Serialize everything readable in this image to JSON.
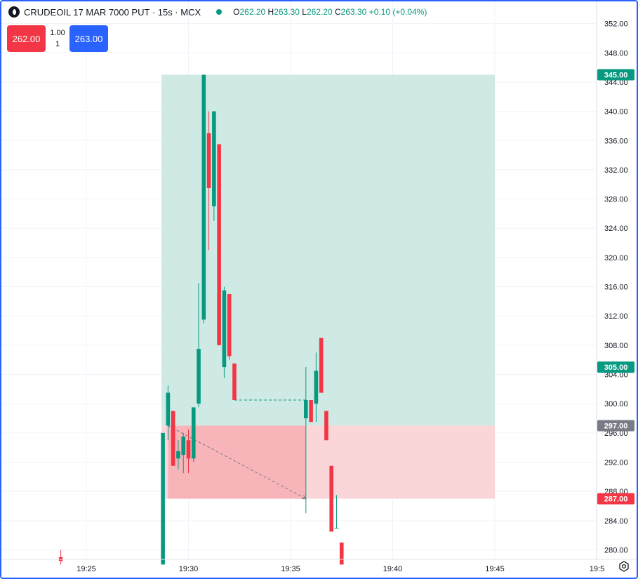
{
  "header": {
    "symbol": "CRUDEOIL 17 MAR 7000 PUT · 15s · MCX",
    "o_label": "O",
    "o_value": "262.20",
    "h_label": "H",
    "h_value": "263.30",
    "l_label": "L",
    "l_value": "262.20",
    "c_label": "C",
    "c_value": "263.30",
    "change": "+0.10 (+0.04%)"
  },
  "trade": {
    "sell_price": "262.00",
    "buy_price": "263.00",
    "qty_top": "1.00",
    "qty_bottom": "1"
  },
  "colors": {
    "up": "#089981",
    "down": "#f23645",
    "accent": "#2962ff",
    "profit_zone": "#cfeae4",
    "loss_zone": "#fbd6d9",
    "loss_zone_overlap": "#f7b5ba",
    "entry_label": "#787b86"
  },
  "chart_data": {
    "type": "candlestick",
    "y_axis": {
      "range": [
        278,
        353
      ],
      "ticks": [
        280,
        284,
        288,
        292,
        296,
        300,
        304,
        308,
        312,
        316,
        320,
        324,
        328,
        332,
        336,
        340,
        344,
        348,
        352
      ],
      "grid": true
    },
    "x_axis": {
      "range": [
        "19:22:15",
        "19:51:30"
      ],
      "ticks": [
        "19:25",
        "19:30",
        "19:35",
        "19:40",
        "19:45",
        "19:5"
      ],
      "grid": true
    },
    "candles": [
      {
        "t": "19:23:45",
        "o": 279.0,
        "h": 280.0,
        "l": 278.0,
        "c": 278.5
      },
      {
        "t": "19:28:45",
        "o": 278.0,
        "h": 296.0,
        "l": 278.0,
        "c": 296.0
      },
      {
        "t": "19:29:00",
        "o": 297.0,
        "h": 302.5,
        "l": 295.0,
        "c": 301.5
      },
      {
        "t": "19:29:15",
        "o": 299.0,
        "h": 299.0,
        "l": 291.5,
        "c": 291.5
      },
      {
        "t": "19:29:30",
        "o": 292.5,
        "h": 295.0,
        "l": 291.0,
        "c": 293.5
      },
      {
        "t": "19:29:45",
        "o": 293.0,
        "h": 296.0,
        "l": 290.5,
        "c": 295.5
      },
      {
        "t": "19:30:00",
        "o": 295.0,
        "h": 296.5,
        "l": 290.5,
        "c": 292.5
      },
      {
        "t": "19:30:15",
        "o": 292.5,
        "h": 299.5,
        "l": 292.0,
        "c": 299.5
      },
      {
        "t": "19:30:30",
        "o": 300.0,
        "h": 316.5,
        "l": 299.5,
        "c": 307.5
      },
      {
        "t": "19:30:45",
        "o": 311.5,
        "h": 345.0,
        "l": 311.0,
        "c": 345.0
      },
      {
        "t": "19:31:00",
        "o": 337.0,
        "h": 340.0,
        "l": 321.0,
        "c": 329.5
      },
      {
        "t": "19:31:15",
        "o": 327.0,
        "h": 340.0,
        "l": 325.0,
        "c": 340.0
      },
      {
        "t": "19:31:30",
        "o": 335.5,
        "h": 335.5,
        "l": 308.0,
        "c": 308.0
      },
      {
        "t": "19:31:45",
        "o": 305.0,
        "h": 316.0,
        "l": 303.5,
        "c": 315.5
      },
      {
        "t": "19:32:00",
        "o": 315.0,
        "h": 315.0,
        "l": 306.0,
        "c": 306.5
      },
      {
        "t": "19:32:15",
        "o": 305.5,
        "h": 305.5,
        "l": 300.5,
        "c": 300.5
      },
      {
        "t": "19:35:45",
        "o": 298.0,
        "h": 305.0,
        "l": 285.0,
        "c": 300.5
      },
      {
        "t": "19:36:00",
        "o": 300.5,
        "h": 300.5,
        "l": 297.5,
        "c": 297.5
      },
      {
        "t": "19:36:15",
        "o": 300.0,
        "h": 307.0,
        "l": 297.5,
        "c": 304.5
      },
      {
        "t": "19:36:30",
        "o": 309.0,
        "h": 309.0,
        "l": 301.5,
        "c": 301.5
      },
      {
        "t": "19:36:45",
        "o": 299.0,
        "h": 299.0,
        "l": 295.0,
        "c": 295.0
      },
      {
        "t": "19:37:00",
        "o": 291.5,
        "h": 291.5,
        "l": 282.5,
        "c": 282.5
      },
      {
        "t": "19:37:15",
        "o": 283.0,
        "h": 287.5,
        "l": 283.0,
        "c": 283.0
      },
      {
        "t": "19:37:30",
        "o": 281.0,
        "h": 281.0,
        "l": 278.0,
        "c": 278.0
      }
    ],
    "position_tool": {
      "start": "19:28:45",
      "end": "19:45:00",
      "entry": 297.0,
      "target": 345.0,
      "stop": 287.0,
      "stop_reached": {
        "from": "19:29:00",
        "to": "19:35:45"
      },
      "labels": [
        "345.00",
        "305.00",
        "297.00",
        "287.00"
      ]
    },
    "dashed_trendlines": [
      {
        "from": [
          "19:29:00",
          297.0
        ],
        "to": [
          "19:35:45",
          287.0
        ],
        "arrow": true
      },
      {
        "from": [
          "19:32:15",
          300.5
        ],
        "to": [
          "19:35:45",
          300.5
        ],
        "arrow": false
      }
    ]
  }
}
